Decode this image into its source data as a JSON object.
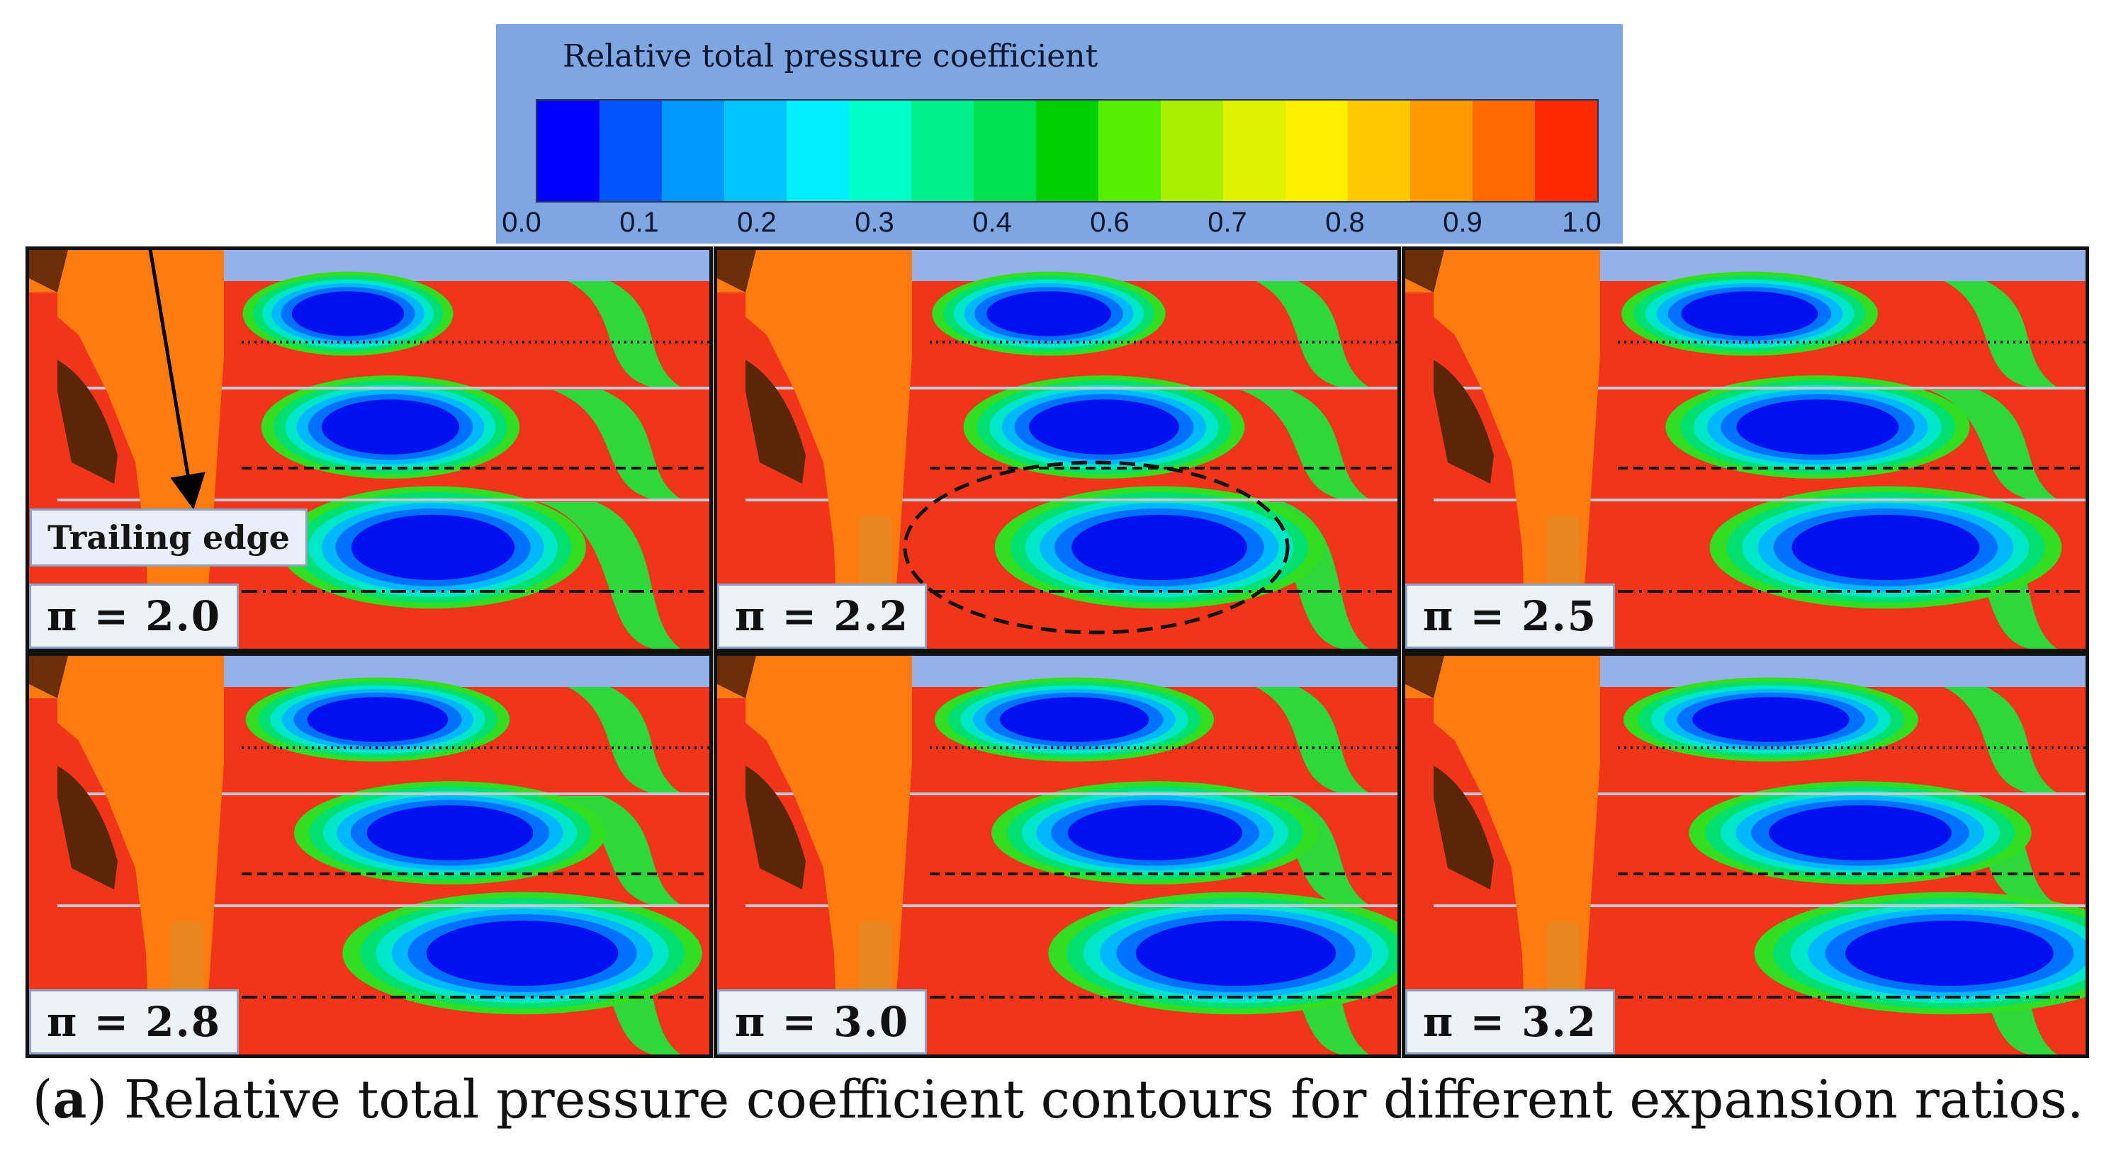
{
  "chart_data": {
    "type": "contour",
    "title": "Relative total pressure coefficient",
    "colorbar": {
      "label": "Relative total pressure coefficient",
      "range": [
        0.0,
        1.0
      ],
      "tick_labels": [
        "0.0",
        "0.1",
        "0.2",
        "0.3",
        "0.4",
        "0.6",
        "0.7",
        "0.8",
        "0.9",
        "1.0"
      ],
      "colors": [
        "#0000ff",
        "#0055ff",
        "#0099ff",
        "#00c3ff",
        "#00f0ff",
        "#00ffc8",
        "#00f08c",
        "#00e050",
        "#00d000",
        "#55ee00",
        "#aaee00",
        "#dff200",
        "#ffee00",
        "#ffc800",
        "#ff9b00",
        "#ff6a00",
        "#ff2a00"
      ]
    },
    "panels": [
      {
        "label": "π = 2.0",
        "expansion_ratio": 2.0
      },
      {
        "label": "π = 2.2",
        "expansion_ratio": 2.2
      },
      {
        "label": "π = 2.5",
        "expansion_ratio": 2.5
      },
      {
        "label": "π = 2.8",
        "expansion_ratio": 2.8
      },
      {
        "label": "π = 3.0",
        "expansion_ratio": 3.0
      },
      {
        "label": "π = 3.2",
        "expansion_ratio": 3.2
      }
    ],
    "annotations": [
      "Trailing edge"
    ],
    "caption_prefix": "(",
    "caption_bold": "a",
    "caption_text": ") Relative total pressure coefficient contours for different expansion ratios."
  }
}
